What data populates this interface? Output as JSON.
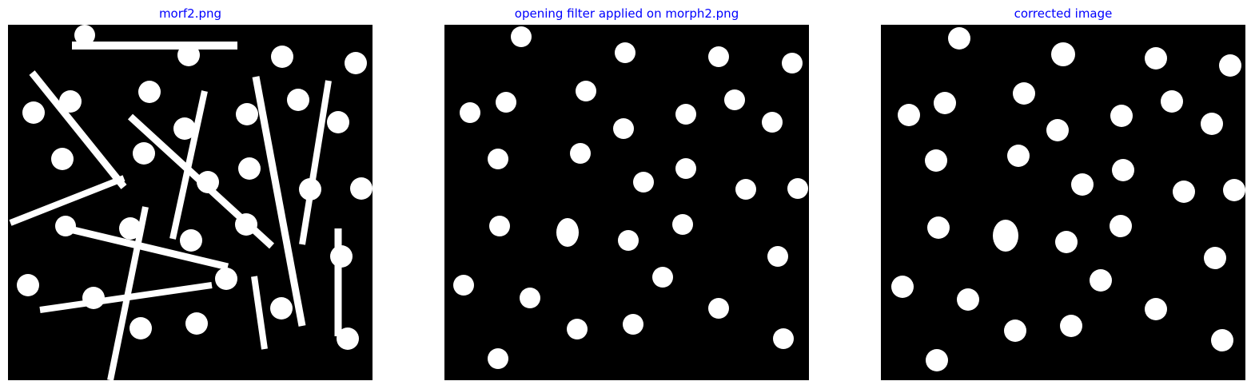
{
  "colors": {
    "title": "#0000ff",
    "background": "#000000",
    "foreground": "#ffffff"
  },
  "panels": [
    {
      "title": "morf2.png"
    },
    {
      "title": "opening filter applied on morph2.png"
    },
    {
      "title": "corrected image"
    }
  ]
}
